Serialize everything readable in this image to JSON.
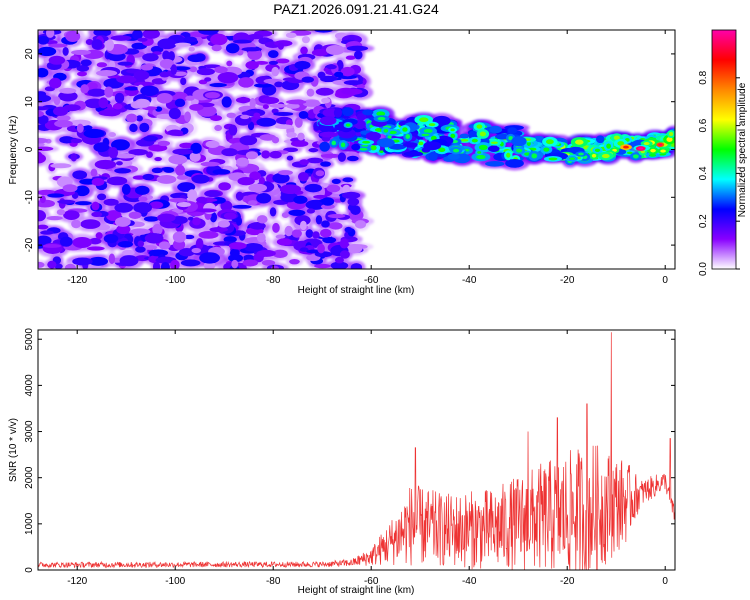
{
  "title": "PAZ1.2026.091.21.41.G24",
  "chart_data": [
    {
      "type": "heatmap",
      "xlabel": "Height of straight line (km)",
      "ylabel": "Frequency (Hz)",
      "xlim": [
        -128,
        2
      ],
      "ylim": [
        -25,
        25
      ],
      "xticks": [
        -120,
        -100,
        -80,
        -60,
        -40,
        -20,
        0
      ],
      "yticks": [
        -20,
        -10,
        0,
        10,
        20
      ],
      "colorbar": {
        "label": "Normalized spectral amplitude",
        "range": [
          0,
          1
        ],
        "ticks": [
          0.0,
          0.2,
          0.4,
          0.6,
          0.8
        ],
        "tick_labels": [
          "0.0",
          "0.2",
          "0.4",
          "0.6",
          "0.8"
        ],
        "colors": [
          "#ffffff",
          "#8800ff",
          "#0000ff",
          "#00ffff",
          "#00ff00",
          "#ffff00",
          "#ff8800",
          "#ff0000",
          "#ff00aa"
        ]
      },
      "noise_region": {
        "x": [
          -128,
          -62
        ],
        "freq": [
          -25,
          25
        ],
        "amplitude": [
          0.05,
          0.25
        ]
      },
      "signal_trace": [
        {
          "x": -70,
          "freq": 4.5
        },
        {
          "x": -62,
          "freq": 4.0
        },
        {
          "x": -55,
          "freq": 3.5
        },
        {
          "x": -50,
          "freq": 2.5
        },
        {
          "x": -45,
          "freq": 2.0
        },
        {
          "x": -40,
          "freq": 1.5
        },
        {
          "x": -35,
          "freq": 1.0
        },
        {
          "x": -30,
          "freq": 0.5
        },
        {
          "x": -25,
          "freq": 0.0
        },
        {
          "x": -20,
          "freq": -0.5
        },
        {
          "x": -15,
          "freq": 0.0
        },
        {
          "x": -10,
          "freq": 0.5
        },
        {
          "x": -5,
          "freq": 0.5
        },
        {
          "x": 0,
          "freq": 1.0
        },
        {
          "x": 2,
          "freq": 1.5
        }
      ],
      "peak": {
        "x": -5,
        "freq": 0.5,
        "amplitude": 0.95
      }
    },
    {
      "type": "line",
      "xlabel": "Height of straight line (km)",
      "ylabel": "SNR (10 * v/v)",
      "xlim": [
        -128,
        2
      ],
      "ylim": [
        0,
        5200
      ],
      "xticks": [
        -120,
        -100,
        -80,
        -60,
        -40,
        -20,
        0
      ],
      "yticks": [
        0,
        1000,
        2000,
        3000,
        4000,
        5000
      ],
      "line_color": "#ee3333",
      "envelope": [
        {
          "x": -128,
          "base": 100,
          "amp": 60
        },
        {
          "x": -70,
          "base": 110,
          "amp": 60
        },
        {
          "x": -64,
          "base": 140,
          "amp": 80
        },
        {
          "x": -60,
          "base": 250,
          "amp": 200
        },
        {
          "x": -56,
          "base": 500,
          "amp": 500
        },
        {
          "x": -52,
          "base": 800,
          "amp": 900
        },
        {
          "x": -45,
          "base": 700,
          "amp": 800
        },
        {
          "x": -35,
          "base": 700,
          "amp": 900
        },
        {
          "x": -25,
          "base": 900,
          "amp": 1200
        },
        {
          "x": -15,
          "base": 1000,
          "amp": 1500
        },
        {
          "x": -8,
          "base": 1300,
          "amp": 900
        },
        {
          "x": -5,
          "base": 1600,
          "amp": 300
        },
        {
          "x": 0,
          "base": 1900,
          "amp": 200
        },
        {
          "x": 2,
          "base": 1100,
          "amp": 200
        }
      ],
      "peaks": [
        {
          "x": -51,
          "y": 2650
        },
        {
          "x": -28,
          "y": 3000
        },
        {
          "x": -22,
          "y": 3300
        },
        {
          "x": -16,
          "y": 3600
        },
        {
          "x": -11,
          "y": 5150
        },
        {
          "x": 1,
          "y": 2850
        }
      ]
    }
  ]
}
